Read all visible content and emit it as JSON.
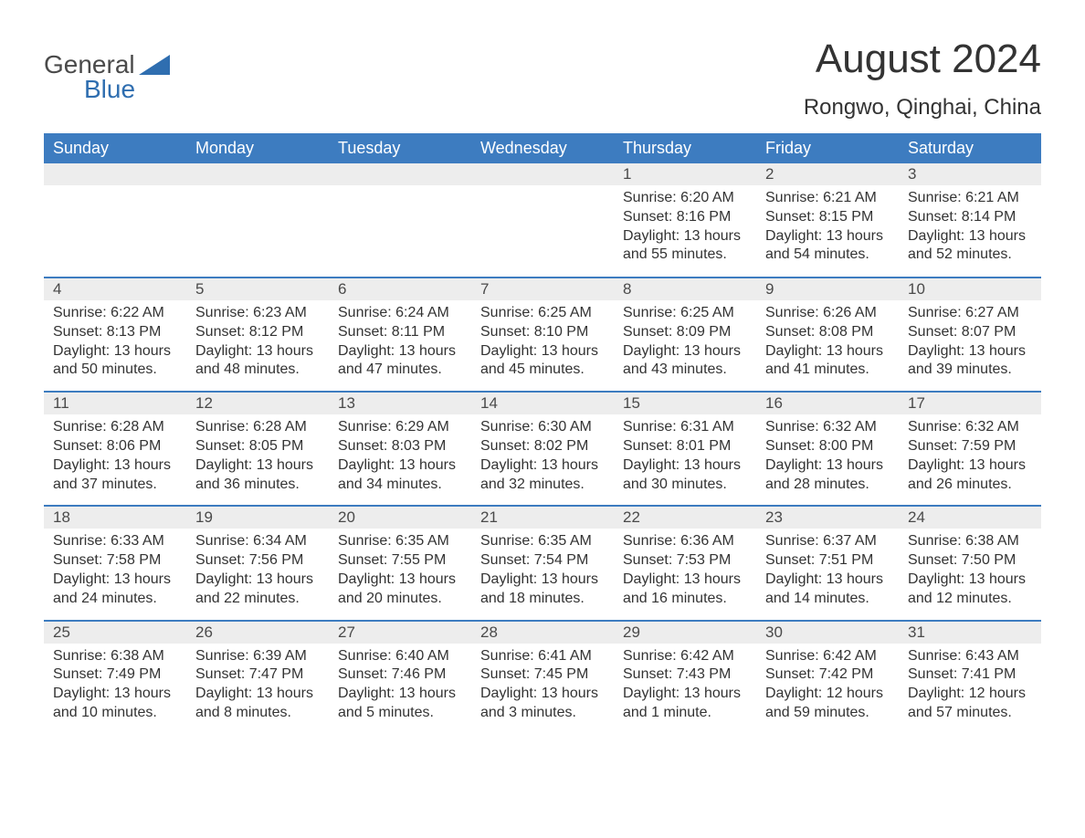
{
  "logo": {
    "general": "General",
    "blue": "Blue"
  },
  "header": {
    "title": "August 2024",
    "location": "Rongwo, Qinghai, China"
  },
  "colors": {
    "header_bg": "#3d7cc0",
    "header_text": "#ffffff",
    "daynum_bg": "#ededed",
    "divider": "#3d7cc0",
    "body_text": "#333333",
    "logo_gray": "#4a4a4a",
    "logo_blue": "#2f6eb0",
    "page_bg": "#ffffff"
  },
  "weekdays": [
    "Sunday",
    "Monday",
    "Tuesday",
    "Wednesday",
    "Thursday",
    "Friday",
    "Saturday"
  ],
  "weeks": [
    [
      null,
      null,
      null,
      null,
      {
        "n": "1",
        "sr": "Sunrise: 6:20 AM",
        "ss": "Sunset: 8:16 PM",
        "dl": "Daylight: 13 hours and 55 minutes."
      },
      {
        "n": "2",
        "sr": "Sunrise: 6:21 AM",
        "ss": "Sunset: 8:15 PM",
        "dl": "Daylight: 13 hours and 54 minutes."
      },
      {
        "n": "3",
        "sr": "Sunrise: 6:21 AM",
        "ss": "Sunset: 8:14 PM",
        "dl": "Daylight: 13 hours and 52 minutes."
      }
    ],
    [
      {
        "n": "4",
        "sr": "Sunrise: 6:22 AM",
        "ss": "Sunset: 8:13 PM",
        "dl": "Daylight: 13 hours and 50 minutes."
      },
      {
        "n": "5",
        "sr": "Sunrise: 6:23 AM",
        "ss": "Sunset: 8:12 PM",
        "dl": "Daylight: 13 hours and 48 minutes."
      },
      {
        "n": "6",
        "sr": "Sunrise: 6:24 AM",
        "ss": "Sunset: 8:11 PM",
        "dl": "Daylight: 13 hours and 47 minutes."
      },
      {
        "n": "7",
        "sr": "Sunrise: 6:25 AM",
        "ss": "Sunset: 8:10 PM",
        "dl": "Daylight: 13 hours and 45 minutes."
      },
      {
        "n": "8",
        "sr": "Sunrise: 6:25 AM",
        "ss": "Sunset: 8:09 PM",
        "dl": "Daylight: 13 hours and 43 minutes."
      },
      {
        "n": "9",
        "sr": "Sunrise: 6:26 AM",
        "ss": "Sunset: 8:08 PM",
        "dl": "Daylight: 13 hours and 41 minutes."
      },
      {
        "n": "10",
        "sr": "Sunrise: 6:27 AM",
        "ss": "Sunset: 8:07 PM",
        "dl": "Daylight: 13 hours and 39 minutes."
      }
    ],
    [
      {
        "n": "11",
        "sr": "Sunrise: 6:28 AM",
        "ss": "Sunset: 8:06 PM",
        "dl": "Daylight: 13 hours and 37 minutes."
      },
      {
        "n": "12",
        "sr": "Sunrise: 6:28 AM",
        "ss": "Sunset: 8:05 PM",
        "dl": "Daylight: 13 hours and 36 minutes."
      },
      {
        "n": "13",
        "sr": "Sunrise: 6:29 AM",
        "ss": "Sunset: 8:03 PM",
        "dl": "Daylight: 13 hours and 34 minutes."
      },
      {
        "n": "14",
        "sr": "Sunrise: 6:30 AM",
        "ss": "Sunset: 8:02 PM",
        "dl": "Daylight: 13 hours and 32 minutes."
      },
      {
        "n": "15",
        "sr": "Sunrise: 6:31 AM",
        "ss": "Sunset: 8:01 PM",
        "dl": "Daylight: 13 hours and 30 minutes."
      },
      {
        "n": "16",
        "sr": "Sunrise: 6:32 AM",
        "ss": "Sunset: 8:00 PM",
        "dl": "Daylight: 13 hours and 28 minutes."
      },
      {
        "n": "17",
        "sr": "Sunrise: 6:32 AM",
        "ss": "Sunset: 7:59 PM",
        "dl": "Daylight: 13 hours and 26 minutes."
      }
    ],
    [
      {
        "n": "18",
        "sr": "Sunrise: 6:33 AM",
        "ss": "Sunset: 7:58 PM",
        "dl": "Daylight: 13 hours and 24 minutes."
      },
      {
        "n": "19",
        "sr": "Sunrise: 6:34 AM",
        "ss": "Sunset: 7:56 PM",
        "dl": "Daylight: 13 hours and 22 minutes."
      },
      {
        "n": "20",
        "sr": "Sunrise: 6:35 AM",
        "ss": "Sunset: 7:55 PM",
        "dl": "Daylight: 13 hours and 20 minutes."
      },
      {
        "n": "21",
        "sr": "Sunrise: 6:35 AM",
        "ss": "Sunset: 7:54 PM",
        "dl": "Daylight: 13 hours and 18 minutes."
      },
      {
        "n": "22",
        "sr": "Sunrise: 6:36 AM",
        "ss": "Sunset: 7:53 PM",
        "dl": "Daylight: 13 hours and 16 minutes."
      },
      {
        "n": "23",
        "sr": "Sunrise: 6:37 AM",
        "ss": "Sunset: 7:51 PM",
        "dl": "Daylight: 13 hours and 14 minutes."
      },
      {
        "n": "24",
        "sr": "Sunrise: 6:38 AM",
        "ss": "Sunset: 7:50 PM",
        "dl": "Daylight: 13 hours and 12 minutes."
      }
    ],
    [
      {
        "n": "25",
        "sr": "Sunrise: 6:38 AM",
        "ss": "Sunset: 7:49 PM",
        "dl": "Daylight: 13 hours and 10 minutes."
      },
      {
        "n": "26",
        "sr": "Sunrise: 6:39 AM",
        "ss": "Sunset: 7:47 PM",
        "dl": "Daylight: 13 hours and 8 minutes."
      },
      {
        "n": "27",
        "sr": "Sunrise: 6:40 AM",
        "ss": "Sunset: 7:46 PM",
        "dl": "Daylight: 13 hours and 5 minutes."
      },
      {
        "n": "28",
        "sr": "Sunrise: 6:41 AM",
        "ss": "Sunset: 7:45 PM",
        "dl": "Daylight: 13 hours and 3 minutes."
      },
      {
        "n": "29",
        "sr": "Sunrise: 6:42 AM",
        "ss": "Sunset: 7:43 PM",
        "dl": "Daylight: 13 hours and 1 minute."
      },
      {
        "n": "30",
        "sr": "Sunrise: 6:42 AM",
        "ss": "Sunset: 7:42 PM",
        "dl": "Daylight: 12 hours and 59 minutes."
      },
      {
        "n": "31",
        "sr": "Sunrise: 6:43 AM",
        "ss": "Sunset: 7:41 PM",
        "dl": "Daylight: 12 hours and 57 minutes."
      }
    ]
  ]
}
